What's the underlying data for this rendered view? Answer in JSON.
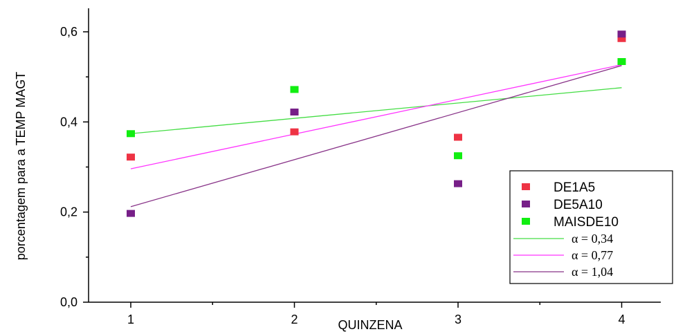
{
  "chart_data": {
    "type": "scatter",
    "xlabel": "QUINZENA",
    "ylabel": "porcentagem para a TEMP MAGT",
    "xlim": [
      0.6,
      4.25
    ],
    "ylim": [
      0.0,
      0.6
    ],
    "x_ticks": [
      1,
      2,
      3,
      4
    ],
    "x_tick_labels": [
      "1",
      "2",
      "3",
      "4"
    ],
    "y_ticks": [
      0.0,
      0.2,
      0.4,
      0.6
    ],
    "y_tick_labels": [
      "0,0",
      "0,2",
      "0,4",
      "0,6"
    ],
    "legend_position": "bottom-right",
    "series": [
      {
        "name": "DE1A5",
        "color": "#ee3344",
        "x": [
          1,
          2,
          3,
          4
        ],
        "values": [
          0.322,
          0.378,
          0.366,
          0.585
        ]
      },
      {
        "name": "DE5A10",
        "color": "#771f88",
        "x": [
          1,
          2,
          3,
          4
        ],
        "values": [
          0.197,
          0.422,
          0.263,
          0.595
        ]
      },
      {
        "name": "MAISDE10",
        "color": "#11ee11",
        "x": [
          1,
          2,
          3,
          4
        ],
        "values": [
          0.374,
          0.472,
          0.325,
          0.534
        ]
      }
    ],
    "fit_lines": [
      {
        "label": "α = 0,34",
        "color": "#44dd44",
        "x": [
          1,
          4
        ],
        "values": [
          0.374,
          0.476
        ]
      },
      {
        "label": "α = 0,77",
        "color": "#ff33ff",
        "x": [
          1,
          4
        ],
        "values": [
          0.296,
          0.527
        ]
      },
      {
        "label": "α = 1,04",
        "color": "#883388",
        "x": [
          1,
          4
        ],
        "values": [
          0.212,
          0.525
        ]
      }
    ]
  }
}
